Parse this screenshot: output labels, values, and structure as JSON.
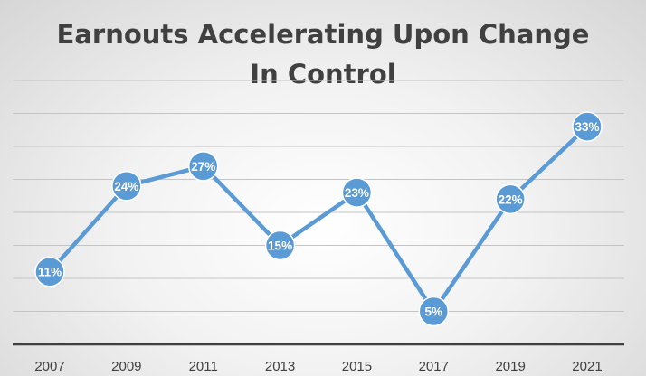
{
  "chart_data": {
    "type": "line",
    "title_lines": [
      "Earnouts Accelerating Upon Change",
      "In Control"
    ],
    "xlabel": "",
    "ylabel": "",
    "categories": [
      "2007",
      "2009",
      "2011",
      "2013",
      "2015",
      "2017",
      "2019",
      "2021"
    ],
    "series": [
      {
        "values": [
          11,
          24,
          27,
          15,
          23,
          5,
          22,
          33
        ],
        "labels": [
          "11%",
          "24%",
          "27%",
          "15%",
          "23%",
          "5%",
          "22%",
          "33%"
        ],
        "color": "#5b9bd5"
      }
    ],
    "ylim": [
      0,
      40
    ],
    "y_axis_visible": false,
    "grid": true,
    "legend": "none"
  }
}
